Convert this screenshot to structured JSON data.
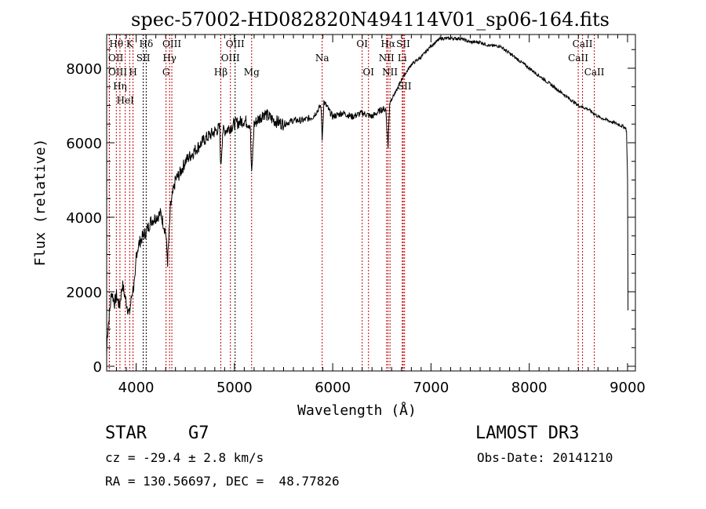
{
  "chart_data": {
    "type": "line",
    "title": "spec-57002-HD082820N494114V01_sp06-164.fits",
    "xlabel": "Wavelength (Å)",
    "ylabel": "Flux (relative)",
    "xlim": [
      3700,
      9080
    ],
    "ylim": [
      -126,
      8905
    ],
    "xticks": [
      4000,
      5000,
      6000,
      7000,
      8000,
      9000
    ],
    "yticks": [
      0,
      2000,
      4000,
      6000,
      8000
    ],
    "series": [
      {
        "name": "flux",
        "x": [
          3700,
          3705,
          3720,
          3750,
          3780,
          3800,
          3830,
          3860,
          3900,
          3930,
          3960,
          3990,
          4000,
          4030,
          4070,
          4100,
          4150,
          4200,
          4250,
          4280,
          4300,
          4320,
          4350,
          4400,
          4450,
          4500,
          4600,
          4700,
          4800,
          4850,
          4861,
          4880,
          4950,
          5000,
          5100,
          5160,
          5175,
          5200,
          5270,
          5300,
          5400,
          5500,
          5600,
          5700,
          5800,
          5880,
          5893,
          5910,
          6000,
          6100,
          6200,
          6300,
          6400,
          6500,
          6540,
          6563,
          6580,
          6650,
          6700,
          6750,
          6800,
          6900,
          7000,
          7100,
          7200,
          7300,
          7400,
          7500,
          7600,
          7700,
          7800,
          7900,
          8000,
          8100,
          8200,
          8300,
          8400,
          8500,
          8600,
          8700,
          8800,
          8900,
          8980,
          8990,
          9000,
          9005
        ],
        "y": [
          300,
          800,
          1200,
          2000,
          1700,
          1900,
          1600,
          2200,
          1700,
          1400,
          2000,
          2300,
          3000,
          3300,
          3500,
          3600,
          3900,
          4000,
          4100,
          3800,
          3600,
          2800,
          4300,
          5000,
          5200,
          5500,
          5800,
          6100,
          6300,
          6400,
          5300,
          6300,
          6400,
          6500,
          6600,
          6500,
          5100,
          6500,
          6700,
          6800,
          6600,
          6500,
          6600,
          6600,
          6700,
          7000,
          6100,
          7100,
          6700,
          6800,
          6700,
          6800,
          6700,
          6900,
          6900,
          5900,
          7100,
          7400,
          7700,
          7900,
          8100,
          8300,
          8600,
          8800,
          8800,
          8800,
          8700,
          8700,
          8600,
          8600,
          8400,
          8200,
          8000,
          7800,
          7600,
          7400,
          7200,
          7000,
          6900,
          6700,
          6600,
          6500,
          6400,
          6300,
          5000,
          1500
        ]
      }
    ],
    "line_markers": [
      {
        "w": 3727,
        "label": "OII",
        "row": 2,
        "color": "#c00000"
      },
      {
        "w": 3727,
        "label": "OIII",
        "row": 3,
        "color": "#c00000"
      },
      {
        "w": 3798,
        "label": "Hθ",
        "row": 1,
        "color": "#c00000"
      },
      {
        "w": 3835,
        "label": "Hη",
        "row": 3,
        "color": "#c00000"
      },
      {
        "w": 3889,
        "label": "HeI",
        "row": 2,
        "color": "#c00000"
      },
      {
        "w": 3934,
        "label": "K",
        "row": 1,
        "color": "#c00000"
      },
      {
        "w": 3968,
        "label": "H",
        "row": 3,
        "color": "#c00000"
      },
      {
        "w": 4072,
        "label": "SII",
        "row": 2,
        "color": "#000000"
      },
      {
        "w": 4102,
        "label": "Hδ",
        "row": 1,
        "color": "#000000"
      },
      {
        "w": 4304,
        "label": "G",
        "row": 3,
        "color": "#c00000"
      },
      {
        "w": 4340,
        "label": "Hγ",
        "row": 2,
        "color": "#c00000"
      },
      {
        "w": 4363,
        "label": "OIII",
        "row": 1,
        "color": "#c00000"
      },
      {
        "w": 4861,
        "label": "Hβ",
        "row": 3,
        "color": "#c00000"
      },
      {
        "w": 4959,
        "label": "OIII",
        "row": 2,
        "color": "#c00000"
      },
      {
        "w": 5007,
        "label": "OIII",
        "row": 1,
        "color": "#000000"
      },
      {
        "w": 5175,
        "label": "Mg",
        "row": 3,
        "color": "#c00000"
      },
      {
        "w": 5893,
        "label": "Na",
        "row": 2,
        "color": "#c00000"
      },
      {
        "w": 6300,
        "label": "OI",
        "row": 1,
        "color": "#c00000"
      },
      {
        "w": 6364,
        "label": "OI",
        "row": 3,
        "color": "#c00000"
      },
      {
        "w": 6548,
        "label": "NII",
        "row": 2,
        "color": "#c00000"
      },
      {
        "w": 6563,
        "label": "Hα",
        "row": 1,
        "color": "#c00000"
      },
      {
        "w": 6583,
        "label": "NII",
        "row": 3,
        "color": "#c00000"
      },
      {
        "w": 6708,
        "label": "Li",
        "row": 2,
        "color": "#c00000"
      },
      {
        "w": 6717,
        "label": "SII",
        "row": 1,
        "color": "#c00000"
      },
      {
        "w": 6731,
        "label": "SII",
        "row": 3,
        "color": "#c00000"
      },
      {
        "w": 8498,
        "label": "CaII",
        "row": 2,
        "color": "#c00000"
      },
      {
        "w": 8542,
        "label": "CaII",
        "row": 1,
        "color": "#c00000"
      },
      {
        "w": 8662,
        "label": "CaII",
        "row": 3,
        "color": "#c00000"
      }
    ]
  },
  "info": {
    "class": "STAR",
    "subclass": "G7",
    "survey": "LAMOST DR3",
    "cz": "cz = -29.4 ± 2.8 km/s",
    "obs_date": "Obs-Date: 20141210",
    "radec": "RA = 130.56697, DEC =  48.77826"
  }
}
